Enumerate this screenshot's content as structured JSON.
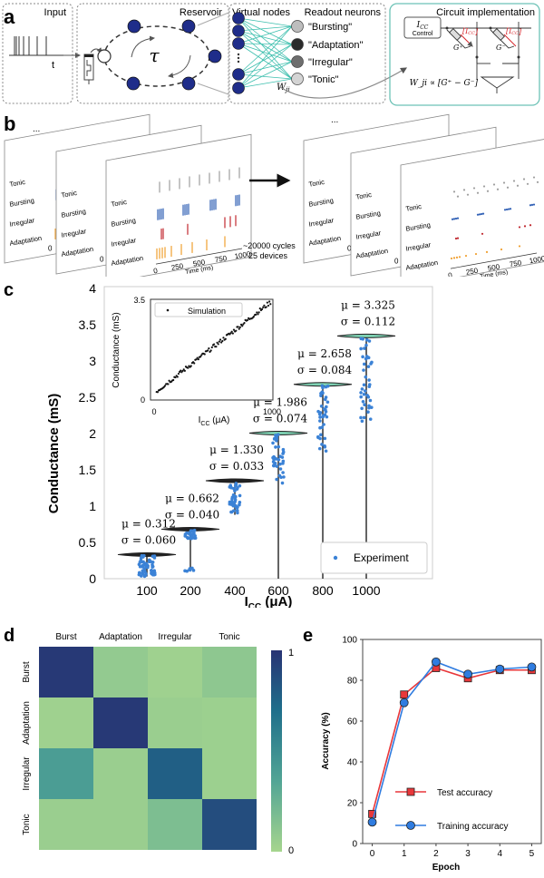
{
  "panel_a": {
    "letter": "a",
    "input_label": "Input",
    "input_axis_t": "t",
    "reservoir_label": "Reservoir",
    "tau_symbol": "τ",
    "virtual_nodes_label": "Virtual nodes",
    "readout_label": "Readout neurons",
    "readout_neurons": [
      {
        "label": "\"Bursting\"",
        "color": "#bdbdbd"
      },
      {
        "label": "\"Adaptation\"",
        "color": "#2b2b2b"
      },
      {
        "label": "\"Irregular\"",
        "color": "#6e6e6e"
      },
      {
        "label": "\"Tonic\"",
        "color": "#d4d4d4"
      }
    ],
    "weight_label": "W_ji",
    "circuit_label": "Circuit implementation",
    "icc_control_symbol": "I_CC",
    "icc_control_label": "Control",
    "icc_red_label": "I_CC",
    "g_plus": "G⁺",
    "g_minus": "G⁻",
    "weight_formula": "W_ji ∝ [G⁺ − G⁻]",
    "node_color": "#1f2d8a",
    "edge_color": "#3dbfae"
  },
  "panel_b": {
    "letter": "b",
    "ellipsis": "...",
    "row_labels": [
      "Tonic",
      "Bursting",
      "Irregular",
      "Adaptation"
    ],
    "x_ticks": [
      "0",
      "250",
      "500",
      "750",
      "1000"
    ],
    "x_label": "Time (ms)",
    "arrow_caption_1": "~20000 cycles",
    "arrow_caption_2": "25 devices",
    "colors": {
      "tonic": "#9e9e9e",
      "bursting": "#2f5fb5",
      "irregular": "#c0282f",
      "adaptation": "#f0a030"
    }
  },
  "chart_data": [
    {
      "id": "c-main",
      "type": "violin-scatter",
      "panel": "c",
      "title": "",
      "xlabel": "I_CC (μA)",
      "ylabel": "Conductance (mS)",
      "categories": [
        "100",
        "200",
        "400",
        "600",
        "800",
        "1000"
      ],
      "y_ticks": [
        "0",
        "0.5",
        "1",
        "1.5",
        "2",
        "2.5",
        "3",
        "3.5",
        "4"
      ],
      "ylim": [
        0,
        4
      ],
      "grid": false,
      "series": [
        {
          "name": "Experiment",
          "color": "#3b82d6",
          "mu": [
            0.312,
            0.662,
            1.33,
            1.986,
            2.658,
            3.325
          ],
          "sigma": [
            0.06,
            0.04,
            0.033,
            0.074,
            0.084,
            0.112
          ]
        }
      ],
      "annotations": [
        {
          "category": "100",
          "mu": "μ = 0.312",
          "sigma": "σ = 0.060"
        },
        {
          "category": "200",
          "mu": "μ = 0.662",
          "sigma": "σ = 0.040"
        },
        {
          "category": "400",
          "mu": "μ = 1.330",
          "sigma": "σ = 0.033"
        },
        {
          "category": "600",
          "mu": "μ = 1.986",
          "sigma": "σ = 0.074"
        },
        {
          "category": "800",
          "mu": "μ = 2.658",
          "sigma": "σ = 0.084"
        },
        {
          "category": "1000",
          "mu": "μ = 3.325",
          "sigma": "σ = 0.112"
        }
      ],
      "legend": {
        "label": "Experiment",
        "placement": "bottom-right"
      }
    },
    {
      "id": "c-inset",
      "type": "scatter",
      "panel": "c-inset",
      "xlabel": "I_CC (μA)",
      "ylabel": "Conductance (mS)",
      "x_ticks": [
        "0",
        "1000"
      ],
      "y_ticks": [
        "0",
        "3.5"
      ],
      "xlim": [
        0,
        1000
      ],
      "ylim": [
        0,
        3.5
      ],
      "series": [
        {
          "name": "Simulation",
          "color": "#111111",
          "x_range": [
            50,
            980
          ],
          "y_range": [
            0.3,
            3.4
          ]
        }
      ],
      "legend": {
        "label": "Simulation",
        "placement": "top-left"
      }
    },
    {
      "id": "d",
      "type": "heatmap",
      "panel": "d",
      "col_labels": [
        "Burst",
        "Adaptation",
        "Irregular",
        "Tonic"
      ],
      "row_labels": [
        "Burst",
        "Adaptation",
        "Irregular",
        "Tonic"
      ],
      "values": [
        [
          0.97,
          0.08,
          0.03,
          0.1
        ],
        [
          0.03,
          0.97,
          0.05,
          0.04
        ],
        [
          0.4,
          0.05,
          0.78,
          0.04
        ],
        [
          0.05,
          0.05,
          0.17,
          0.87
        ]
      ],
      "colorbar": {
        "min": 0,
        "max": 1,
        "ticks": [
          "0",
          "1"
        ],
        "colors": [
          "#a6d58e",
          "#52a595",
          "#1f6f8b",
          "#283374"
        ]
      }
    },
    {
      "id": "e",
      "type": "line",
      "panel": "e",
      "xlabel": "Epoch",
      "ylabel": "Accuracy (%)",
      "x": [
        0,
        1,
        2,
        3,
        4,
        5
      ],
      "x_ticks": [
        "0",
        "1",
        "2",
        "3",
        "4",
        "5"
      ],
      "y_ticks": [
        "0",
        "20",
        "40",
        "60",
        "80",
        "100"
      ],
      "xlim": [
        -0.3,
        5.3
      ],
      "ylim": [
        0,
        100
      ],
      "series": [
        {
          "name": "Test accuracy",
          "color": "#e8373a",
          "marker": "square",
          "values": [
            14.5,
            73,
            86,
            81,
            85,
            85
          ]
        },
        {
          "name": "Training accuracy",
          "color": "#2f7ce0",
          "marker": "circle",
          "values": [
            10.5,
            69,
            89,
            83,
            85.5,
            86.5
          ]
        }
      ],
      "legend": {
        "placement": "bottom-right"
      }
    }
  ],
  "panel_c": {
    "letter": "c"
  },
  "panel_d": {
    "letter": "d"
  },
  "panel_e": {
    "letter": "e"
  }
}
